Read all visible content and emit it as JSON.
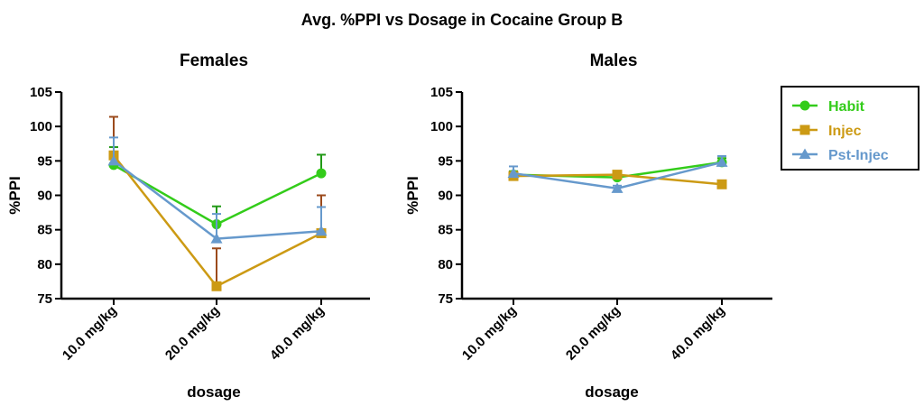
{
  "figure": {
    "title": "Avg. %PPI vs Dosage in Cocaine Group B"
  },
  "legend": {
    "placement": "top-right",
    "items": [
      {
        "name": "Habit",
        "color": "#33cc1a",
        "marker": "circle"
      },
      {
        "name": "Injec",
        "color": "#cc9a14",
        "marker": "square"
      },
      {
        "name": "Pst-Injec",
        "color": "#6699cc",
        "marker": "triangle"
      }
    ]
  },
  "chart_data": [
    {
      "type": "line",
      "title": "Females",
      "xlabel": "dosage",
      "ylabel": "%PPI",
      "categories": [
        "10.0 mg/kg",
        "20.0 mg/kg",
        "40.0 mg/kg"
      ],
      "ylim": [
        75,
        105
      ],
      "yticks": [
        75,
        80,
        85,
        90,
        95,
        100,
        105
      ],
      "grid": false,
      "series": [
        {
          "name": "Habit",
          "color": "#33cc1a",
          "errColor": "#229916",
          "marker": "circle",
          "values": [
            94.4,
            85.8,
            93.2
          ],
          "errors": [
            2.6,
            2.6,
            2.7
          ]
        },
        {
          "name": "Injec",
          "color": "#cc9a14",
          "errColor": "#9b4a1c",
          "marker": "square",
          "values": [
            95.8,
            76.8,
            84.5
          ],
          "errors": [
            5.6,
            5.5,
            5.5
          ]
        },
        {
          "name": "Pst-Injec",
          "color": "#6699cc",
          "errColor": "#6699cc",
          "marker": "triangle",
          "values": [
            95.0,
            83.7,
            84.8
          ],
          "errors": [
            3.4,
            3.6,
            3.5
          ]
        }
      ]
    },
    {
      "type": "line",
      "title": "Males",
      "xlabel": "dosage",
      "ylabel": "%PPI",
      "categories": [
        "10.0 mg/kg",
        "20.0 mg/kg",
        "40.0 mg/kg"
      ],
      "ylim": [
        75,
        105
      ],
      "yticks": [
        75,
        80,
        85,
        90,
        95,
        100,
        105
      ],
      "grid": false,
      "series": [
        {
          "name": "Habit",
          "color": "#33cc1a",
          "errColor": "#229916",
          "marker": "circle",
          "values": [
            93.0,
            92.6,
            94.8
          ],
          "errors": [
            0.5,
            0.5,
            0.6
          ]
        },
        {
          "name": "Injec",
          "color": "#cc9a14",
          "errColor": "#9b4a1c",
          "marker": "square",
          "values": [
            92.8,
            93.0,
            91.6
          ],
          "errors": [
            0.4,
            0.4,
            0.3
          ]
        },
        {
          "name": "Pst-Injec",
          "color": "#6699cc",
          "errColor": "#6699cc",
          "marker": "triangle",
          "values": [
            93.2,
            91.0,
            94.8
          ],
          "errors": [
            1.0,
            0.4,
            0.9
          ]
        }
      ]
    }
  ]
}
